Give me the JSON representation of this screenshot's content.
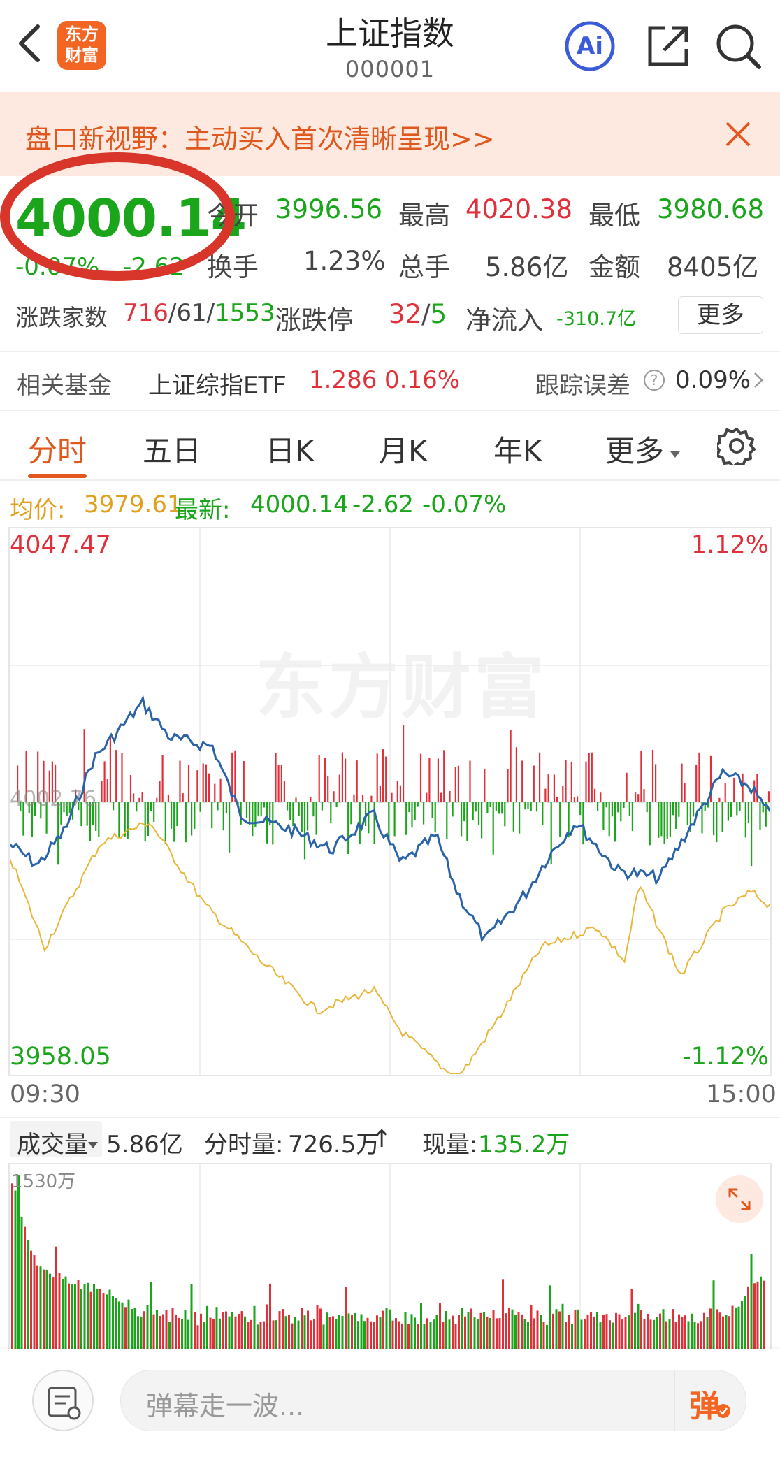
{
  "header": {
    "logo_line1": "东方",
    "logo_line2": "财富",
    "title": "上证指数",
    "code": "000001",
    "ai_label": "Ai"
  },
  "banner": {
    "text": "盘口新视野：主动买入首次清晰呈现>>"
  },
  "quote": {
    "price": "4000.14",
    "change_pct": "-0.07%",
    "change": "-2.62",
    "open_label": "今开",
    "open": "3996.56",
    "high_label": "最高",
    "high": "4020.38",
    "low_label": "最低",
    "low": "3980.68",
    "turnover_label": "换手",
    "turnover": "1.23%",
    "volume_label": "总手",
    "volume": "5.86亿",
    "amount_label": "金额",
    "amount": "8405亿",
    "breadth_label": "涨跌家数",
    "up_count": "716",
    "flat_count": "61",
    "down_count": "1553",
    "limit_label": "涨跌停",
    "limit_up": "32",
    "limit_down": "5",
    "netflow_label": "净流入",
    "netflow": "-310.7亿",
    "more_label": "更多",
    "sep": "/"
  },
  "fund": {
    "label": "相关基金",
    "name": "上证综指ETF",
    "price": "1.286",
    "pct": "0.16%",
    "tracking_label": "跟踪误差",
    "tracking_value": "0.09%"
  },
  "tabs": [
    {
      "label": "分时"
    },
    {
      "label": "五日"
    },
    {
      "label": "日K"
    },
    {
      "label": "月K"
    },
    {
      "label": "年K"
    },
    {
      "label": "更多"
    }
  ],
  "avg": {
    "avg_label": "均价:",
    "avg_value": "3979.61",
    "latest_label": "最新:",
    "latest_value": "4000.14",
    "change": "-2.62",
    "change_pct": "-0.07%"
  },
  "chart": {
    "top_price": "4047.47",
    "top_pct": "1.12%",
    "mid_price": "4002.76",
    "bottom_price": "3958.05",
    "bottom_pct": "-1.12%",
    "start_time": "09:30",
    "end_time": "15:00",
    "watermark": "东方财富",
    "colors": {
      "price_line": "#2a63a8",
      "avg_line": "#e8b73a",
      "up": "#e0303a",
      "down": "#1aa51a"
    }
  },
  "volume": {
    "select_label": "成交量",
    "total": "5.86亿",
    "minute_label": "分时量:",
    "minute_value": "726.5万",
    "arrow": "↑",
    "now_label": "现量:",
    "now_value": "135.2万",
    "max_label": "1530万"
  },
  "bottom": {
    "placeholder": "弹幕走一波...",
    "danmu_btn": "弹"
  }
}
